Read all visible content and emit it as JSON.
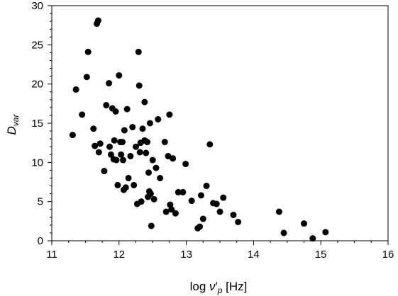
{
  "chart_data": {
    "type": "scatter",
    "title": "",
    "xlabel": {
      "base": "log ",
      "nu": "ν",
      "prime": "′",
      "sub": "p",
      "unit": " [Hz]"
    },
    "ylabel": {
      "base": "D",
      "sub": "var"
    },
    "xlim": [
      11,
      16
    ],
    "ylim": [
      0,
      30
    ],
    "x_ticks": [
      "11",
      "12",
      "13",
      "14",
      "15",
      "16"
    ],
    "y_ticks": [
      "0",
      "5",
      "10",
      "15",
      "20",
      "25",
      "30"
    ],
    "x_minor_step": 0.25,
    "y_minor_step": 1,
    "grid": false,
    "marker_color": "#000000",
    "series": [
      {
        "points": [
          [
            11.31,
            13.5
          ],
          [
            11.36,
            19.3
          ],
          [
            11.45,
            16.1
          ],
          [
            11.52,
            20.9
          ],
          [
            11.54,
            24.1
          ],
          [
            11.62,
            14.3
          ],
          [
            11.64,
            12.1
          ],
          [
            11.67,
            27.7
          ],
          [
            11.69,
            28.1
          ],
          [
            11.7,
            11.3
          ],
          [
            11.72,
            12.4
          ],
          [
            11.78,
            8.9
          ],
          [
            11.81,
            17.3
          ],
          [
            11.85,
            20.1
          ],
          [
            11.86,
            12.0
          ],
          [
            11.88,
            11.0
          ],
          [
            11.9,
            16.9
          ],
          [
            11.92,
            10.4
          ],
          [
            11.93,
            12.8
          ],
          [
            11.95,
            16.5
          ],
          [
            11.96,
            10.3
          ],
          [
            11.98,
            7.1
          ],
          [
            12.0,
            21.1
          ],
          [
            12.02,
            12.6
          ],
          [
            12.03,
            11.0
          ],
          [
            12.05,
            12.6
          ],
          [
            12.06,
            10.3
          ],
          [
            12.07,
            6.5
          ],
          [
            12.08,
            14.1
          ],
          [
            12.1,
            6.8
          ],
          [
            12.12,
            16.8
          ],
          [
            12.14,
            8.0
          ],
          [
            12.17,
            10.8
          ],
          [
            12.2,
            14.5
          ],
          [
            12.22,
            7.1
          ],
          [
            12.25,
            12.0
          ],
          [
            12.27,
            4.7
          ],
          [
            12.29,
            24.1
          ],
          [
            12.3,
            19.8
          ],
          [
            12.31,
            11.3
          ],
          [
            12.32,
            12.5
          ],
          [
            12.33,
            5.0
          ],
          [
            12.35,
            14.3
          ],
          [
            12.38,
            12.8
          ],
          [
            12.38,
            17.7
          ],
          [
            12.4,
            11.2
          ],
          [
            12.42,
            12.6
          ],
          [
            12.43,
            5.6
          ],
          [
            12.44,
            8.7
          ],
          [
            12.45,
            6.3
          ],
          [
            12.46,
            15.0
          ],
          [
            12.47,
            6.0
          ],
          [
            12.48,
            1.9
          ],
          [
            12.5,
            10.3
          ],
          [
            12.52,
            5.3
          ],
          [
            12.55,
            9.3
          ],
          [
            12.58,
            15.5
          ],
          [
            12.61,
            8.0
          ],
          [
            12.68,
            12.6
          ],
          [
            12.7,
            3.7
          ],
          [
            12.73,
            10.8
          ],
          [
            12.75,
            16.1
          ],
          [
            12.76,
            4.6
          ],
          [
            12.78,
            4.0
          ],
          [
            12.8,
            10.5
          ],
          [
            12.84,
            3.5
          ],
          [
            12.88,
            6.2
          ],
          [
            12.95,
            6.2
          ],
          [
            12.99,
            9.8
          ],
          [
            13.08,
            5.1
          ],
          [
            13.17,
            1.6
          ],
          [
            13.2,
            1.8
          ],
          [
            13.22,
            5.8
          ],
          [
            13.25,
            2.8
          ],
          [
            13.3,
            7.0
          ],
          [
            13.35,
            12.3
          ],
          [
            13.4,
            4.8
          ],
          [
            13.45,
            4.7
          ],
          [
            13.5,
            3.7
          ],
          [
            13.55,
            5.5
          ],
          [
            13.7,
            3.3
          ],
          [
            13.77,
            2.4
          ],
          [
            14.38,
            3.7
          ],
          [
            14.45,
            1.0
          ],
          [
            14.75,
            2.2
          ],
          [
            14.88,
            0.3
          ],
          [
            15.07,
            1.1
          ]
        ]
      }
    ]
  }
}
